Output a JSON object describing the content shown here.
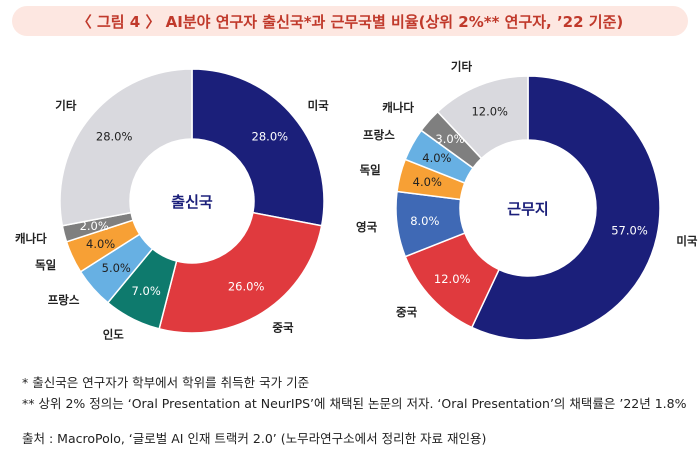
{
  "title": "〈 그림 4 〉 AI분야 연구자 출신국*과 근무국별 비율(상위 2%** 연구자, ’22 기준)",
  "chart_data": [
    {
      "type": "pie",
      "title": "출신국",
      "slices": [
        {
          "label": "미국",
          "value": 28.0,
          "value_label": "28.0%",
          "color": "#1b1f7a"
        },
        {
          "label": "중국",
          "value": 26.0,
          "value_label": "26.0%",
          "color": "#e03a3e"
        },
        {
          "label": "인도",
          "value": 7.0,
          "value_label": "7.0%",
          "color": "#0e7a6d"
        },
        {
          "label": "프랑스",
          "value": 5.0,
          "value_label": "5.0%",
          "color": "#67b0e3"
        },
        {
          "label": "독일",
          "value": 4.0,
          "value_label": "4.0%",
          "color": "#f7a035"
        },
        {
          "label": "캐나다",
          "value": 2.0,
          "value_label": "2.0%",
          "color": "#7f7f7f"
        },
        {
          "label": "기타",
          "value": 28.0,
          "value_label": "28.0%",
          "color": "#d9d9de"
        }
      ]
    },
    {
      "type": "pie",
      "title": "근무지",
      "slices": [
        {
          "label": "미국",
          "value": 57.0,
          "value_label": "57.0%",
          "color": "#1b1f7a"
        },
        {
          "label": "중국",
          "value": 12.0,
          "value_label": "12.0%",
          "color": "#e03a3e"
        },
        {
          "label": "영국",
          "value": 8.0,
          "value_label": "8.0%",
          "color": "#3f69b5"
        },
        {
          "label": "독일",
          "value": 4.0,
          "value_label": "4.0%",
          "color": "#f7a035"
        },
        {
          "label": "프랑스",
          "value": 4.0,
          "value_label": "4.0%",
          "color": "#67b0e3"
        },
        {
          "label": "캐나다",
          "value": 3.0,
          "value_label": "3.0%",
          "color": "#7f7f7f"
        },
        {
          "label": "기타",
          "value": 12.0,
          "value_label": "12.0%",
          "color": "#d9d9de"
        }
      ]
    }
  ],
  "footnotes": {
    "note1": "* 출신국은 연구자가 학부에서 학위를 취득한 국가 기준",
    "note2": "** 상위 2% 정의는 ‘Oral Presentation at NeurIPS’에 채택된 논문의 저자. ‘Oral Presentation’의 채택률은 ’22년 1.8%",
    "source": "출처 : MacroPolo, ‘글로벌 AI 인재 트랙커 2.0’ (노무라연구소에서 정리한 자료 재인용)"
  }
}
